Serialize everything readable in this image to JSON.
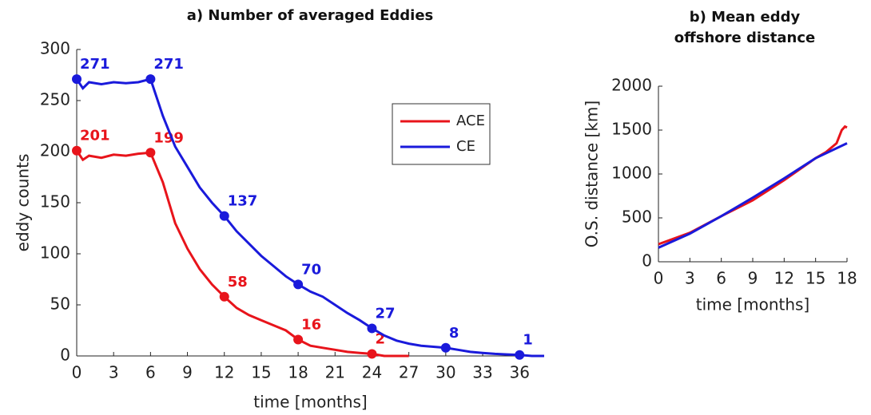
{
  "chart_data": [
    {
      "type": "line",
      "title": [
        "a)  Number of averaged Eddies"
      ],
      "xlabel": "time [months]",
      "ylabel": "eddy counts",
      "xlim": [
        0,
        38
      ],
      "ylim": [
        0,
        300
      ],
      "xticks": [
        0,
        3,
        6,
        9,
        12,
        15,
        18,
        21,
        24,
        27,
        30,
        33,
        36
      ],
      "yticks": [
        0,
        50,
        100,
        150,
        200,
        250,
        300
      ],
      "legend": "upper right",
      "series": [
        {
          "name": "ACE",
          "color": "#e8141b",
          "x": [
            0,
            0.5,
            1,
            2,
            3,
            4,
            5,
            6,
            7,
            8,
            9,
            10,
            11,
            12,
            13,
            14,
            15,
            16,
            17,
            18,
            19,
            20,
            21,
            22,
            23,
            24,
            25,
            26,
            27
          ],
          "values": [
            201,
            192,
            196,
            194,
            197,
            196,
            198,
            199,
            170,
            130,
            105,
            85,
            70,
            58,
            47,
            40,
            35,
            30,
            25,
            16,
            10,
            8,
            6,
            4,
            3,
            2,
            0,
            0,
            0
          ],
          "markers": {
            "x": [
              0,
              6,
              12,
              18,
              24
            ],
            "values": [
              201,
              199,
              58,
              16,
              2
            ]
          }
        },
        {
          "name": "CE",
          "color": "#1a1adb",
          "x": [
            0,
            0.5,
            1,
            2,
            3,
            4,
            5,
            6,
            7,
            8,
            9,
            10,
            11,
            12,
            13,
            14,
            15,
            16,
            17,
            18,
            19,
            20,
            21,
            22,
            23,
            24,
            25,
            26,
            27,
            28,
            29,
            30,
            31,
            32,
            33,
            34,
            35,
            36,
            37,
            38
          ],
          "values": [
            271,
            262,
            268,
            266,
            268,
            267,
            268,
            271,
            235,
            205,
            185,
            165,
            150,
            137,
            122,
            110,
            98,
            88,
            78,
            70,
            63,
            58,
            50,
            42,
            35,
            27,
            20,
            15,
            12,
            10,
            9,
            8,
            6,
            4,
            3,
            2,
            1.5,
            1,
            0,
            0
          ],
          "markers": {
            "x": [
              0,
              6,
              12,
              18,
              24,
              30,
              36
            ],
            "values": [
              271,
              271,
              137,
              70,
              27,
              8,
              1
            ]
          }
        }
      ]
    },
    {
      "type": "line",
      "title": [
        "b)  Mean eddy",
        "offshore distance"
      ],
      "xlabel": "time [months]",
      "ylabel": "O.S. distance [km]",
      "xlim": [
        0,
        18
      ],
      "ylim": [
        0,
        2000
      ],
      "xticks": [
        0,
        3,
        6,
        9,
        12,
        15,
        18
      ],
      "yticks": [
        0,
        500,
        1000,
        1500,
        2000
      ],
      "series": [
        {
          "color": "#e8141b",
          "x": [
            0,
            3,
            6,
            9,
            12,
            15,
            16,
            17,
            17.5,
            17.8,
            18
          ],
          "values": [
            200,
            330,
            520,
            700,
            930,
            1180,
            1250,
            1350,
            1500,
            1540,
            1530
          ]
        },
        {
          "color": "#1a1adb",
          "x": [
            0,
            3,
            6,
            9,
            12,
            15,
            18
          ],
          "values": [
            160,
            320,
            520,
            730,
            950,
            1180,
            1350
          ]
        }
      ]
    }
  ]
}
